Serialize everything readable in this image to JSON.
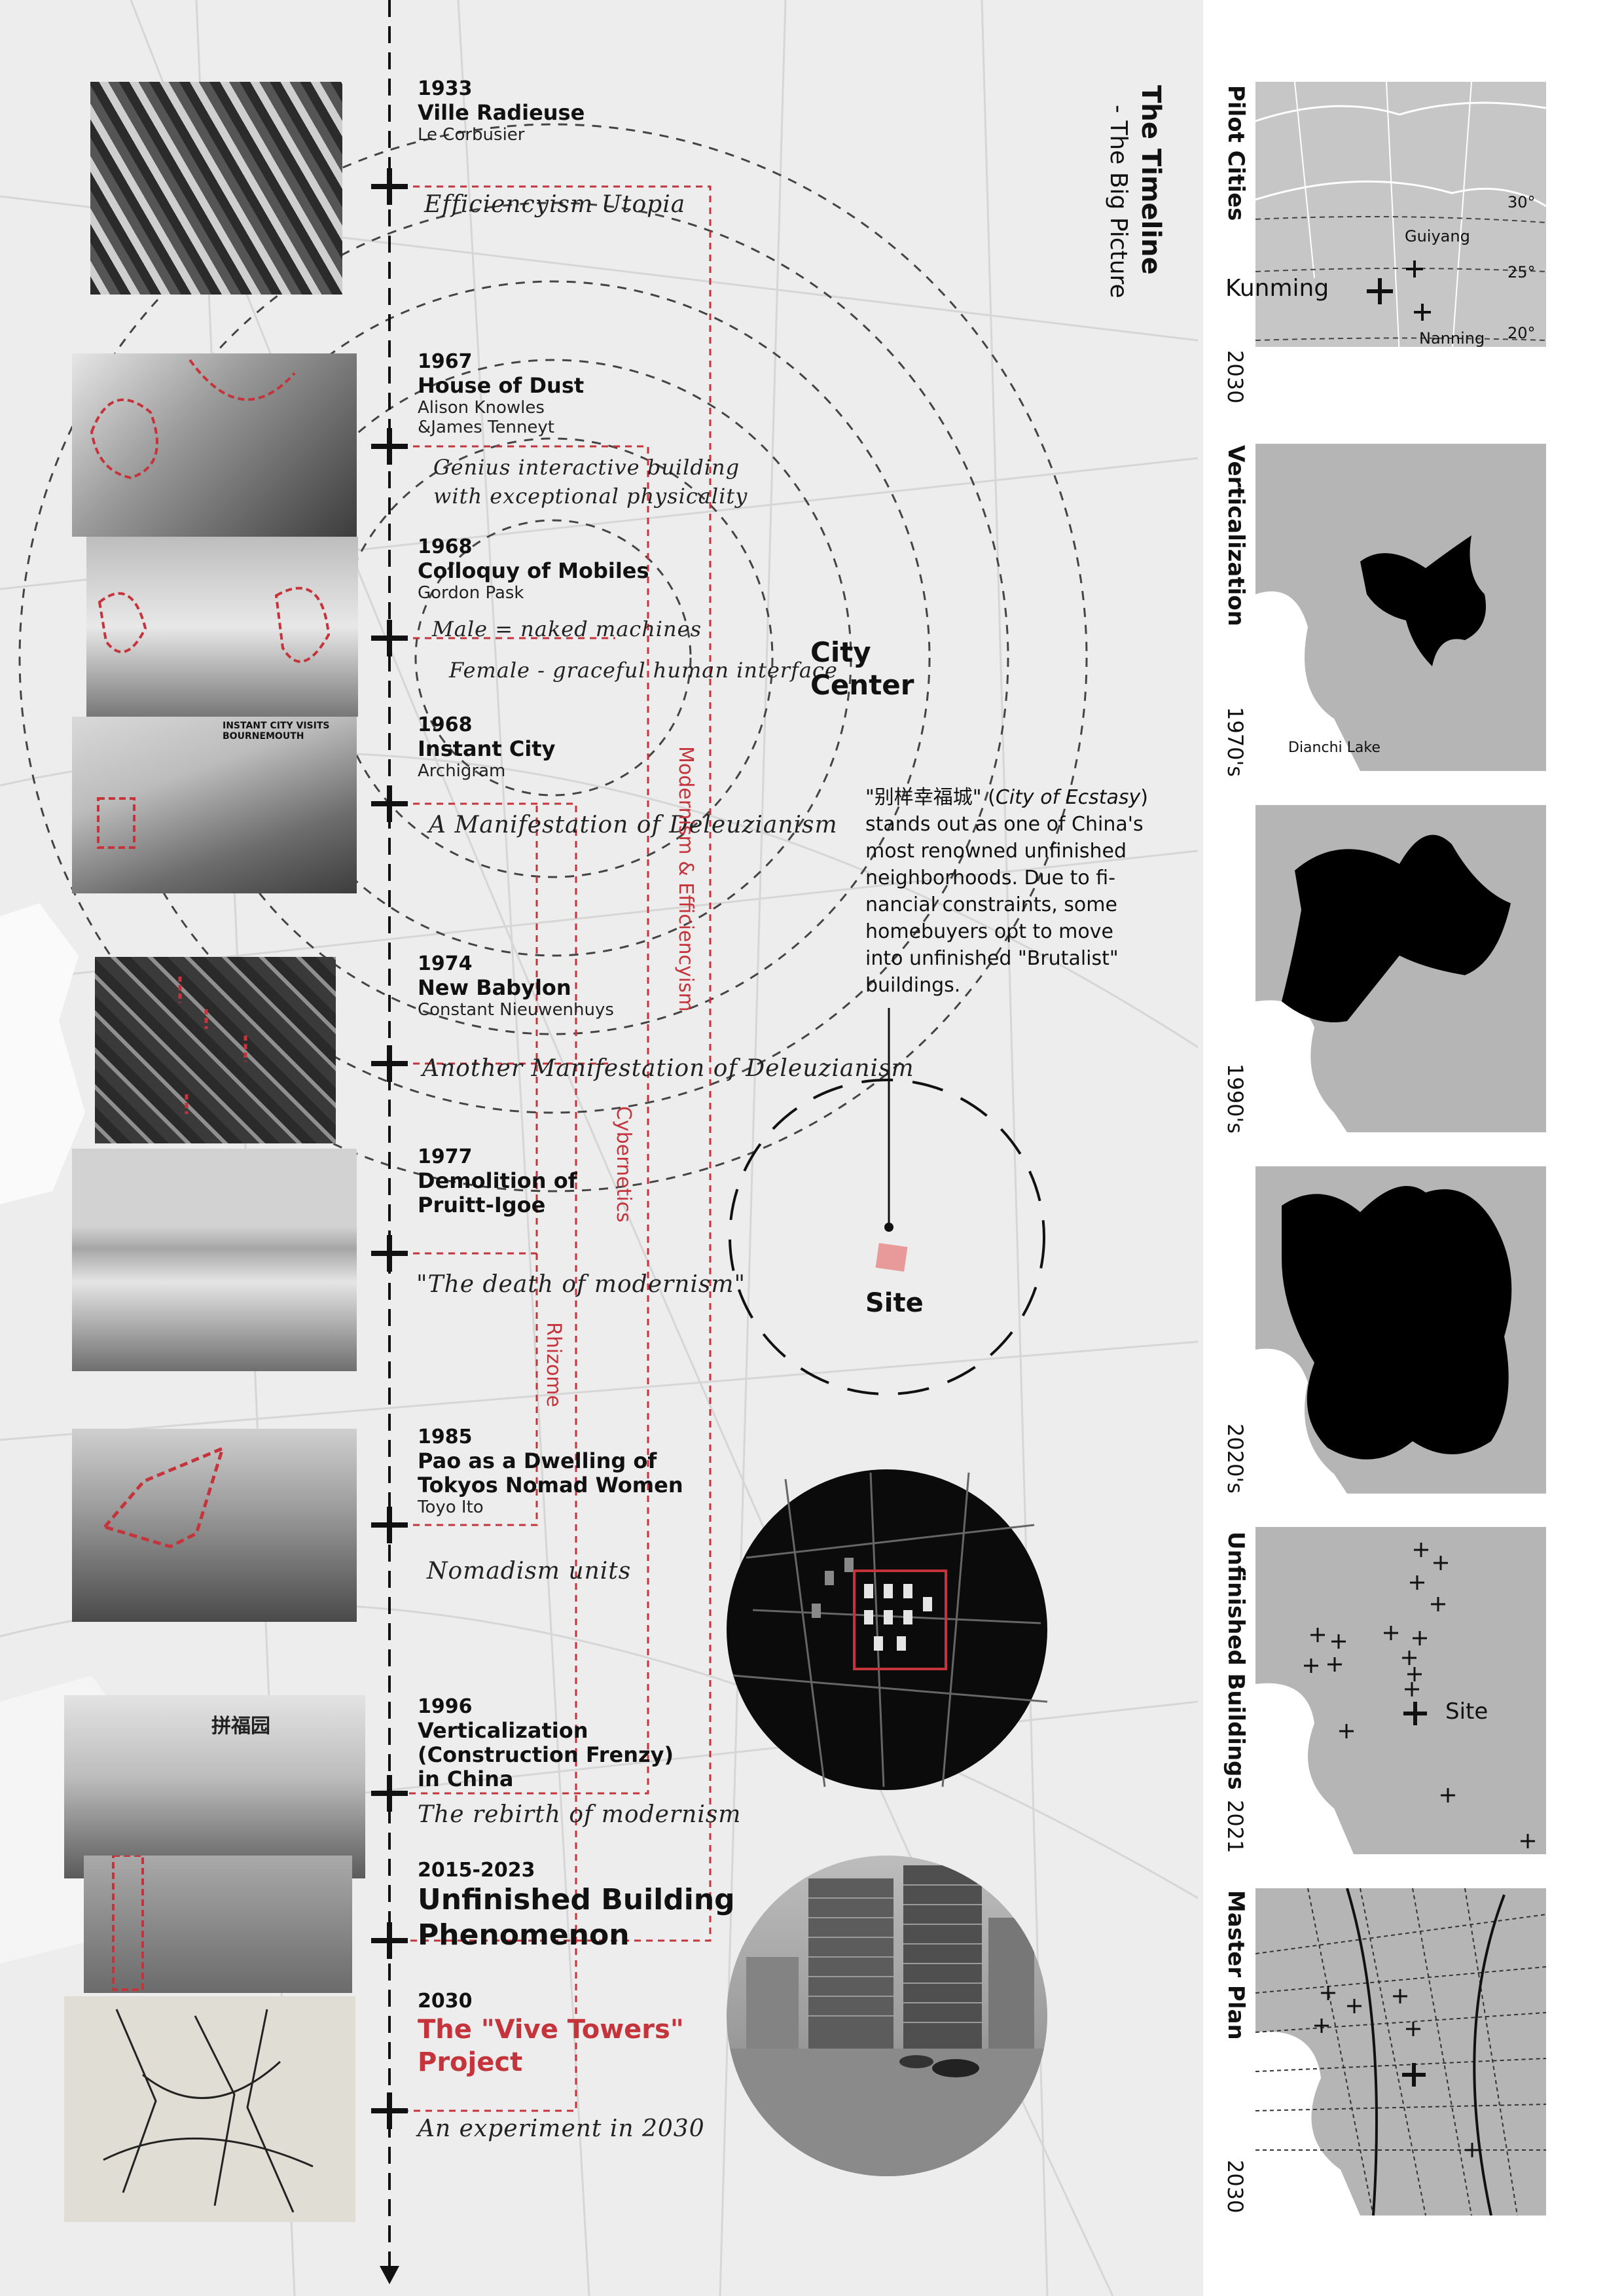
{
  "header": {
    "title": "The Timeline",
    "subtitle": "- The Big Picture"
  },
  "timeline": [
    {
      "year": "1933",
      "title": "Ville Radieuse",
      "author": "Le Corbusier",
      "note": "Efficiencyism Utopia"
    },
    {
      "year": "1967",
      "title": "House of Dust",
      "author_lines": [
        "Alison Knowles",
        "&James Tenneyt"
      ],
      "note_lines": [
        "Genius interactive building",
        "with exceptional physicality"
      ]
    },
    {
      "year": "1968",
      "title": "Colloquy of Mobiles",
      "author": "Gordon Pask",
      "note_lines": [
        "Male = naked machines",
        "Female - graceful human interface"
      ]
    },
    {
      "year": "1968",
      "title": "Instant City",
      "author": "Archigram",
      "note": "A Manifestation of Deleuzianism",
      "photo_caption": "INSTANT CITY VISITS BOURNEMOUTH"
    },
    {
      "year": "1974",
      "title": "New Babylon",
      "author": "Constant Nieuwenhuys",
      "note": "Another Manifestation of Deleuzianism"
    },
    {
      "year": "1977",
      "title_lines": [
        "Demolition of",
        "Pruitt-Igoe"
      ],
      "note": "\"The death of modernism\""
    },
    {
      "year": "1985",
      "title_lines": [
        "Pao as a Dwelling of",
        "Tokyos Nomad Women"
      ],
      "author": "Toyo Ito",
      "note": "Nomadism units"
    },
    {
      "year": "1996",
      "title_lines": [
        "Verticalization",
        "(Construction Frenzy)",
        "in China"
      ],
      "note": "The rebirth of modernism",
      "photo_caption": "拼福园"
    },
    {
      "year": "2015-2023",
      "title_lines": [
        "Unfinished Building",
        "Phenomenon"
      ]
    },
    {
      "year": "2030",
      "title_lines": [
        "The \"Vive Towers\"",
        "Project"
      ],
      "note": "An experiment in 2030"
    }
  ],
  "themes": [
    "Modernism & Efficiencyism",
    "Cybernetics",
    "Rhizome"
  ],
  "center_label": [
    "City",
    "Center"
  ],
  "site_label": "Site",
  "description": {
    "quote": "\"别样幸福城\"",
    "english_name": "City of Ecstasy",
    "lines": [
      "stands out as one of China's",
      "most renowned unfinished",
      "neighborhoods. Due to fi-",
      "nancial constraints, some",
      "homebuyers opt to move",
      "into unfinished \"Brutalist\"",
      "buildings."
    ]
  },
  "side_panels": [
    {
      "label": "Pilot Cities",
      "year": "2030",
      "cities": [
        "Kunming",
        "Guiyang",
        "Nanning"
      ],
      "latitudes": [
        "30°",
        "25°",
        "20°"
      ]
    },
    {
      "label": "Verticalization",
      "year": "1970's",
      "lake": "Dianchi Lake"
    },
    {
      "label": "",
      "year": "1990's"
    },
    {
      "label": "",
      "year": "2020's"
    },
    {
      "label": "Unfinished Buildings",
      "year": "2021",
      "site": "Site"
    },
    {
      "label": "Master Plan",
      "year": "2030"
    }
  ],
  "colors": {
    "accent": "#c4343a",
    "background": "#ededed",
    "panel": "#b5b5b5"
  },
  "icons": [
    "crosshair-icon",
    "arrow-down-icon"
  ]
}
